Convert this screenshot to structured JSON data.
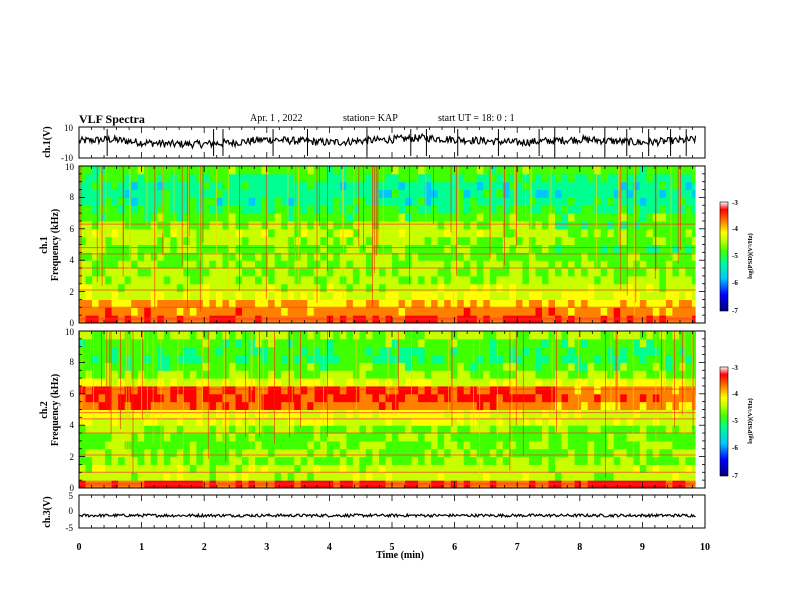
{
  "header": {
    "title": "VLF Spectra",
    "date": "Apr. 1 , 2022",
    "station": "station= KAP",
    "start": "start UT = 18: 0 : 1"
  },
  "colors": {
    "colormap": [
      "#000080",
      "#0000ff",
      "#00c8ff",
      "#00ff90",
      "#40ff00",
      "#c8ff00",
      "#ffff00",
      "#ff8000",
      "#ff0000",
      "#ffffff"
    ],
    "trace": "#000000",
    "axis": "#000000"
  },
  "chart_data": [
    {
      "type": "line",
      "name": "ch1-waveform",
      "ylabel": "ch.1(V)",
      "ylim": [
        -10,
        10
      ],
      "yticks": [
        "10",
        "-10"
      ],
      "x": [
        0,
        0.5,
        1,
        1.5,
        2,
        2.5,
        3,
        3.5,
        4,
        4.5,
        5,
        5.5,
        6,
        6.5,
        7,
        7.5,
        8,
        8.5,
        9,
        9.5,
        9.85
      ],
      "y": [
        1,
        2,
        0,
        -1,
        -1,
        0,
        2,
        1,
        0,
        1,
        2,
        3,
        2,
        1,
        0,
        1,
        2,
        1,
        0,
        1,
        2
      ]
    },
    {
      "type": "heatmap",
      "name": "ch1-spectrogram",
      "ylabel_line1": "ch.1",
      "ylabel_line2": "Frequency (kHz)",
      "ylim": [
        0,
        10
      ],
      "yticks": [
        "0",
        "2",
        "4",
        "6",
        "8",
        "10"
      ],
      "colorbar": {
        "min": -7,
        "max": -3,
        "ticks": [
          "-3",
          "-4",
          "-5",
          "-6",
          "-7"
        ],
        "label": "log(PSD)(V²/Hz)"
      },
      "band_levels": [
        -3.8,
        -4.0,
        -4.2,
        -4.6,
        -4.8,
        -4.9,
        -5.0,
        -5.0,
        -5.1,
        -5.1,
        -4.9,
        -4.8,
        -5.0,
        -5.2,
        -5.4,
        -5.6,
        -5.6,
        -5.6,
        -5.4,
        -5.2
      ]
    },
    {
      "type": "heatmap",
      "name": "ch2-spectrogram",
      "ylabel_line1": "ch.2",
      "ylabel_line2": "Frequency (kHz)",
      "ylim": [
        0,
        10
      ],
      "yticks": [
        "0",
        "2",
        "4",
        "6",
        "8",
        "10"
      ],
      "colorbar": {
        "min": -7,
        "max": -3,
        "ticks": [
          "-3",
          "-4",
          "-5",
          "-6",
          "-7"
        ],
        "label": "log(PSD)(V²/Hz)"
      },
      "band_levels": [
        -3.8,
        -4.8,
        -4.8,
        -5.0,
        -5.0,
        -5.1,
        -5.1,
        -5.0,
        -4.7,
        -4.5,
        -3.9,
        -3.7,
        -3.8,
        -4.6,
        -5.0,
        -5.2,
        -5.4,
        -5.3,
        -5.2,
        -5.0
      ]
    },
    {
      "type": "line",
      "name": "ch3-waveform",
      "ylabel": "ch.3(V)",
      "ylim": [
        -5,
        5
      ],
      "yticks": [
        "5",
        "0",
        "-5"
      ],
      "x": [
        0,
        9.85
      ],
      "y": [
        -1.2,
        -1.2
      ]
    }
  ],
  "xaxis": {
    "label": "Time (min)",
    "range": [
      0,
      10
    ],
    "ticks": [
      "0",
      "1",
      "2",
      "3",
      "4",
      "5",
      "6",
      "7",
      "8",
      "9",
      "10"
    ]
  }
}
